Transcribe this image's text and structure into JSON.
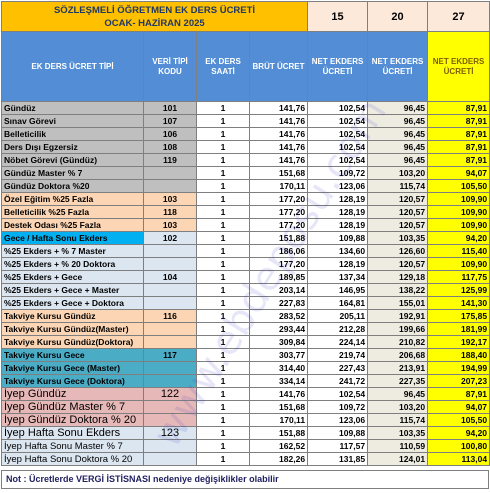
{
  "header": {
    "title": "SÖZLEŞMELİ ÖĞRETMEN EK DERS ÜCRETİ",
    "period": "OCAK- HAZİRAN 2025",
    "hours": [
      "15",
      "20",
      "27"
    ]
  },
  "table": {
    "columns": [
      "EK DERS ÜCRET TİPİ",
      "VERİ TİPİ KODU",
      "EK DERS SAATİ",
      "BRÜT ÜCRET",
      "NET EKDERS ÜCRETİ",
      "NET EKDERS ÜCRETİ",
      "NET EKDERS ÜCRETİ"
    ],
    "rows": [
      [
        "Gündüz",
        "101",
        "1",
        "141,76",
        "102,54",
        "96,45",
        "87,91"
      ],
      [
        "Sınav Görevi",
        "107",
        "1",
        "141,76",
        "102,54",
        "96,45",
        "87,91"
      ],
      [
        "Belleticilik",
        "106",
        "1",
        "141,76",
        "102,54",
        "96,45",
        "87,91"
      ],
      [
        "Ders Dışı Egzersiz",
        "108",
        "1",
        "141,76",
        "102,54",
        "96,45",
        "87,91"
      ],
      [
        "Nöbet Görevi (Gündüz)",
        "119",
        "1",
        "141,76",
        "102,54",
        "96,45",
        "87,91"
      ],
      [
        "Gündüz Master % 7",
        null,
        "1",
        "151,68",
        "109,72",
        "103,20",
        "94,07"
      ],
      [
        "Gündüz Doktora %20",
        null,
        "1",
        "170,11",
        "123,06",
        "115,74",
        "105,50"
      ],
      [
        "Özel Eğitim %25 Fazla",
        "103",
        "1",
        "177,20",
        "128,19",
        "120,57",
        "109,90"
      ],
      [
        "Belleticilik %25 Fazla",
        "118",
        "1",
        "177,20",
        "128,19",
        "120,57",
        "109,90"
      ],
      [
        "Destek Odası %25 Fazla",
        "103",
        "1",
        "177,20",
        "128,19",
        "120,57",
        "109,90"
      ],
      [
        "Gece / Hafta Sonu Ekders",
        "102",
        "1",
        "151,88",
        "109,88",
        "103,35",
        "94,20"
      ],
      [
        "%25 Ekders + % 7 Master",
        null,
        "1",
        "186,06",
        "134,60",
        "126,60",
        "115,40"
      ],
      [
        "%25 Ekders + % 20 Doktora",
        null,
        "1",
        "177,20",
        "128,19",
        "120,57",
        "109,90"
      ],
      [
        "%25 Ekders + Gece",
        "104",
        "1",
        "189,85",
        "137,34",
        "129,18",
        "117,75"
      ],
      [
        "%25 Ekders + Gece + Master",
        null,
        "1",
        "203,14",
        "146,95",
        "138,22",
        "125,99"
      ],
      [
        "%25 Ekders + Gece + Doktora",
        null,
        "1",
        "227,83",
        "164,81",
        "155,01",
        "141,30"
      ],
      [
        "Takviye Kursu Gündüz",
        "116",
        "1",
        "283,52",
        "205,11",
        "192,91",
        "175,85"
      ],
      [
        "Takviye Kursu Gündüz(Master)",
        null,
        "1",
        "293,44",
        "212,28",
        "199,66",
        "181,99"
      ],
      [
        "Takviye Kursu Gündüz(Doktora)",
        null,
        "1",
        "309,84",
        "224,14",
        "210,82",
        "192,17"
      ],
      [
        "Takviye Kursu Gece",
        "117",
        "1",
        "303,77",
        "219,74",
        "206,68",
        "188,40"
      ],
      [
        "Takviye Kursu Gece (Master)",
        null,
        "1",
        "314,40",
        "227,43",
        "213,91",
        "194,99"
      ],
      [
        "Takviye Kursu Gece (Doktora)",
        null,
        "1",
        "334,14",
        "241,72",
        "227,35",
        "207,23"
      ],
      [
        "İyep Gündüz",
        "122",
        "1",
        "141,76",
        "102,54",
        "96,45",
        "87,91"
      ],
      [
        "İyep Gündüz Master % 7",
        null,
        "1",
        "151,68",
        "109,72",
        "103,20",
        "94,07"
      ],
      [
        "İyep Gündüz Doktora % 20",
        null,
        "1",
        "170,11",
        "123,06",
        "115,74",
        "105,50"
      ],
      [
        "İyep Hafta Sonu Ekders",
        "123",
        "1",
        "151,88",
        "109,88",
        "103,35",
        "94,20"
      ],
      [
        "İyep Hafta Sonu Master % 7",
        null,
        "1",
        "162,52",
        "117,57",
        "110,59",
        "100,80"
      ],
      [
        "İyep Hafta Sonu Doktora % 20",
        null,
        "1",
        "182,26",
        "131,85",
        "124,01",
        "113,04"
      ]
    ]
  },
  "watermark": "www.ebdeposu.com",
  "note": "Not : Ücretlerde VERGİ İSTİSNASI nedeniye değişiklikler olabilir"
}
